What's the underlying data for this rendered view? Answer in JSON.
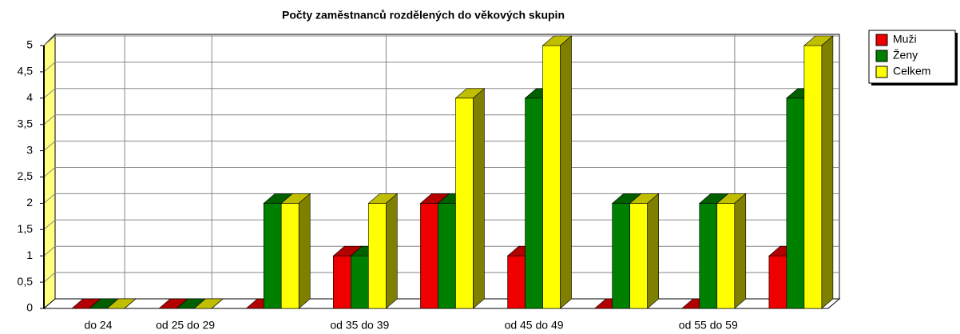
{
  "chart_data": {
    "type": "bar3d",
    "title": "Počty zaměstnanců rozdělených do věkových skupin",
    "categories": [
      "do 24",
      "od 25 do 29",
      null,
      "od 35 do 39",
      null,
      "od 45 do 49",
      null,
      "od 55 do 59",
      null
    ],
    "series": [
      {
        "name": "Muži",
        "color": "#ee0000",
        "values": [
          0,
          0,
          0,
          1,
          2,
          1,
          0,
          0,
          1
        ]
      },
      {
        "name": "Ženy",
        "color": "#008000",
        "values": [
          0,
          0,
          2,
          1,
          2,
          4,
          2,
          2,
          4
        ]
      },
      {
        "name": "Celkem",
        "color": "#ffff00",
        "values": [
          0,
          0,
          2,
          2,
          4,
          5,
          2,
          2,
          5
        ]
      }
    ],
    "ylim": [
      0,
      5
    ],
    "yticks": [
      0,
      {
        "value": 0.5,
        "label": "0,5"
      },
      1,
      {
        "value": 1.5,
        "label": "1,5"
      },
      2,
      {
        "value": 2.5,
        "label": "2,5"
      },
      3,
      {
        "value": 3.5,
        "label": "3,5"
      },
      4,
      {
        "value": 4.5,
        "label": "4,5"
      },
      5
    ],
    "grid": true,
    "legend": "right"
  }
}
